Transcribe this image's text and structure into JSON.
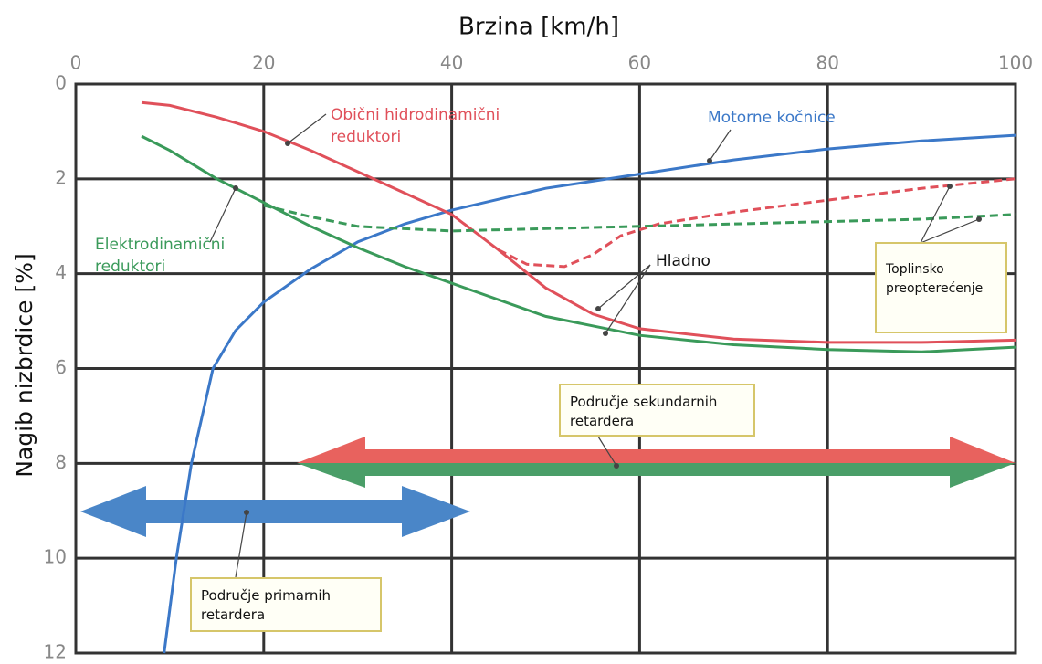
{
  "chart_data": {
    "type": "line",
    "title": "Brzina [km/h]",
    "y_label": "Nagib nizbrdice [%]",
    "x_axis_position": "top",
    "y_inverted": true,
    "grid": true,
    "xlim": [
      0,
      100
    ],
    "xticks": [
      0,
      20,
      40,
      60,
      80,
      100
    ],
    "ylim": [
      0,
      12
    ],
    "yticks": [
      0,
      2,
      4,
      6,
      8,
      10,
      12
    ],
    "series": [
      {
        "name": "Motorne kočnice",
        "color": "#3b78c8",
        "linestyle": "solid",
        "x": [
          9.4,
          10.7,
          12.3,
          14.6,
          17,
          20,
          25,
          30,
          35,
          40,
          50,
          60,
          70,
          80,
          90,
          100
        ],
        "values": [
          12,
          10,
          8,
          6,
          5.2,
          4.6,
          3.9,
          3.33,
          2.95,
          2.66,
          2.2,
          1.9,
          1.6,
          1.37,
          1.2,
          1.08
        ]
      },
      {
        "name": "Obični hidrodinamični reduktori",
        "color": "#e0505a",
        "linestyle": "solid",
        "x": [
          7,
          10,
          15,
          20,
          25,
          30,
          35,
          40,
          45,
          50,
          55,
          60,
          70,
          80,
          90,
          100
        ],
        "values": [
          0.39,
          0.45,
          0.7,
          1.0,
          1.4,
          1.85,
          2.3,
          2.75,
          3.5,
          4.3,
          4.85,
          5.16,
          5.38,
          5.45,
          5.45,
          5.4
        ]
      },
      {
        "color": "#e0505a",
        "linestyle": "dashed",
        "x": [
          45,
          48,
          52,
          55,
          58,
          62,
          70,
          80,
          90,
          100
        ],
        "values": [
          3.5,
          3.8,
          3.85,
          3.6,
          3.2,
          2.95,
          2.7,
          2.45,
          2.2,
          2.0
        ]
      },
      {
        "name": "Elektrodinamični reduktori",
        "color": "#3a9a5a",
        "linestyle": "solid",
        "x": [
          7,
          10,
          15,
          20,
          25,
          30,
          35,
          40,
          50,
          60,
          70,
          80,
          90,
          100
        ],
        "values": [
          1.1,
          1.4,
          2.0,
          2.5,
          3.0,
          3.45,
          3.85,
          4.2,
          4.9,
          5.3,
          5.5,
          5.6,
          5.65,
          5.55
        ]
      },
      {
        "color": "#3a9a5a",
        "linestyle": "dashed",
        "x": [
          20,
          25,
          30,
          40,
          50,
          60,
          70,
          80,
          90,
          100
        ],
        "values": [
          2.56,
          2.8,
          3.0,
          3.1,
          3.05,
          3.0,
          2.95,
          2.9,
          2.85,
          2.75
        ]
      }
    ],
    "annotations": [
      "Hladno",
      "Toplinsko preopterećenje",
      "Područje sekundarnih retardera",
      "Područje primarnih retardera"
    ]
  }
}
